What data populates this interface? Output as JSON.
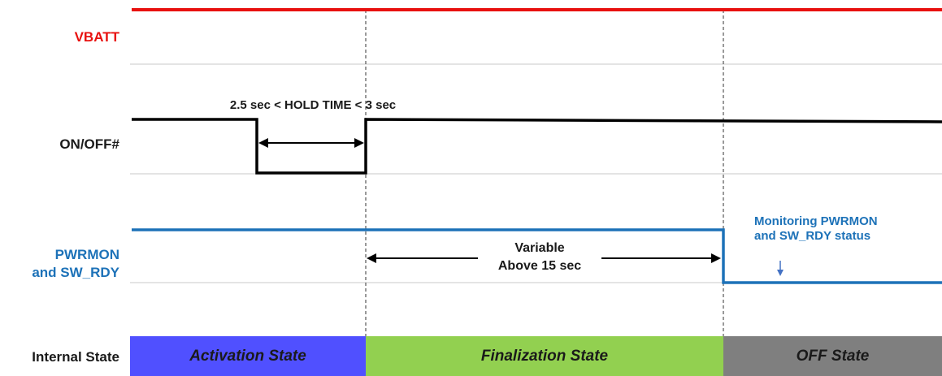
{
  "signals": {
    "vbatt": "VBATT",
    "onoff": "ON/OFF#",
    "pwrmon_line1": "PWRMON",
    "pwrmon_line2": "and SW_RDY",
    "internal_state": "Internal State"
  },
  "annotations": {
    "hold_time": "2.5 sec < HOLD TIME < 3 sec",
    "variable_line1": "Variable",
    "variable_line2": "Above 15 sec",
    "monitor_line1": "Monitoring PWRMON",
    "monitor_line2": "and SW_RDY status"
  },
  "states": [
    {
      "label": "Activation State",
      "color": "#5050ff"
    },
    {
      "label": "Finalization State",
      "color": "#92d050"
    },
    {
      "label": "OFF State",
      "color": "#7f7f7f"
    }
  ],
  "colors": {
    "vbatt": "#e8110f",
    "onoff": "#000000",
    "pwrmon": "#1d72b8",
    "grid": "#bfbfbf"
  }
}
